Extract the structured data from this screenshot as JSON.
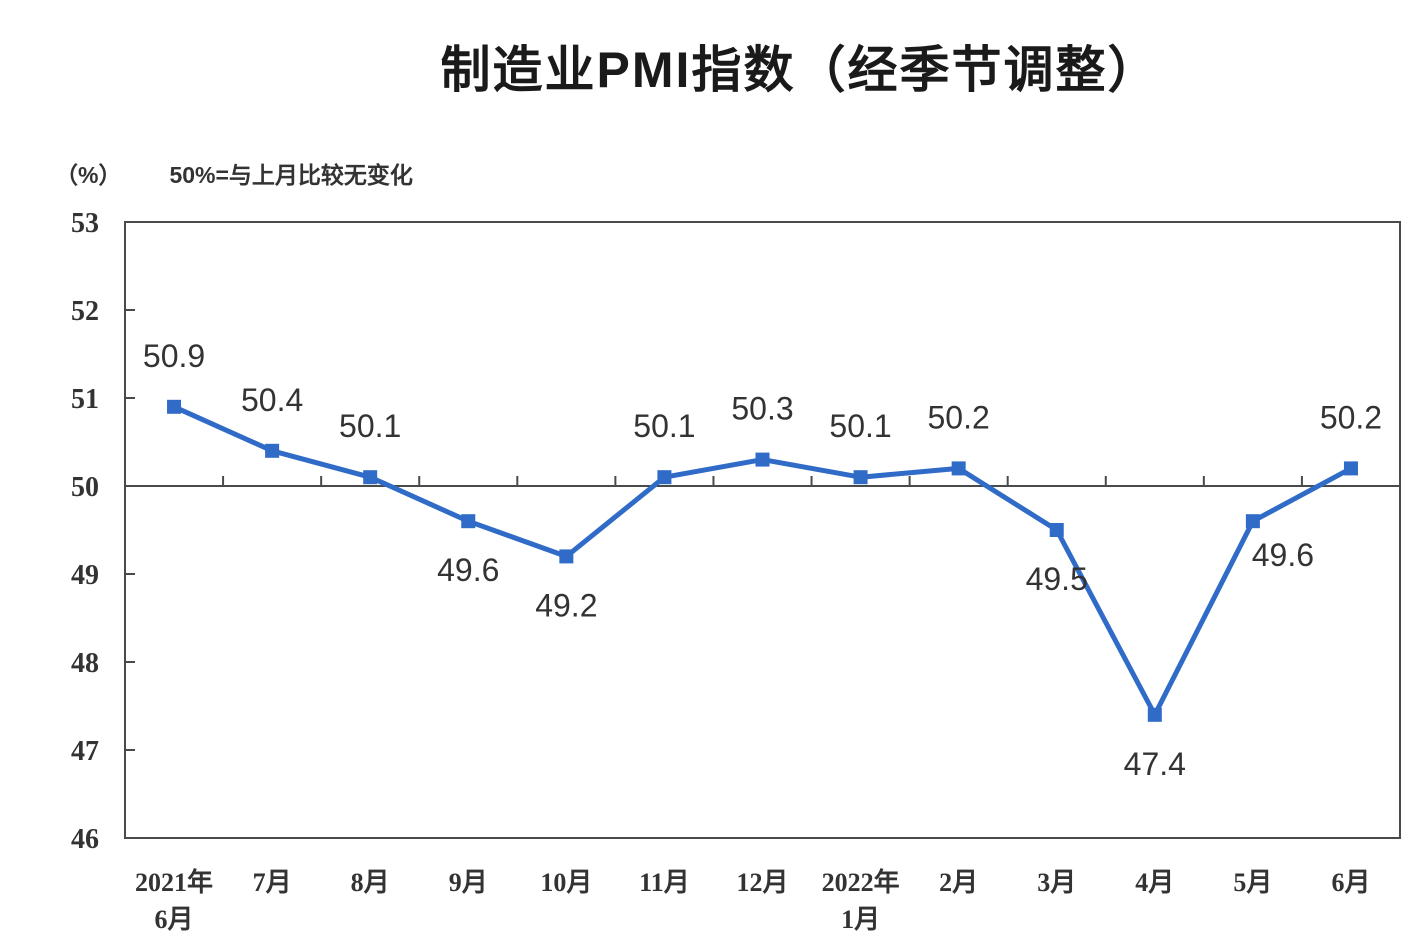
{
  "header": {
    "title": "制造业PMI指数（经季节调整）",
    "y_axis_unit": "（%）",
    "reference_note": "50%=与上月比较无变化"
  },
  "chart_data": {
    "type": "line",
    "title": "制造业PMI指数（经季节调整）",
    "subtitle": "50%=与上月比较无变化",
    "unit": "%",
    "categories": [
      "2021年|6月",
      "7月",
      "8月",
      "9月",
      "10月",
      "11月",
      "12月",
      "2022年|1月",
      "2月",
      "3月",
      "4月",
      "5月",
      "6月"
    ],
    "values": [
      50.9,
      50.4,
      50.1,
      49.6,
      49.2,
      50.1,
      50.3,
      50.1,
      50.2,
      49.5,
      47.4,
      49.6,
      50.2
    ],
    "ylim": [
      46,
      53
    ],
    "y_ticks": [
      46,
      47,
      48,
      49,
      50,
      51,
      52,
      53
    ],
    "reference_line": 50,
    "grid": false,
    "legend": "none",
    "marker": "square",
    "label_placement": [
      "above",
      "above",
      "above",
      "below",
      "below",
      "above",
      "above",
      "above",
      "above",
      "below",
      "below",
      "below-right",
      "above"
    ],
    "colors": {
      "line": "#2f6bc7",
      "axis": "#4a4a4a",
      "text": "#333333",
      "background": "#ffffff"
    }
  }
}
